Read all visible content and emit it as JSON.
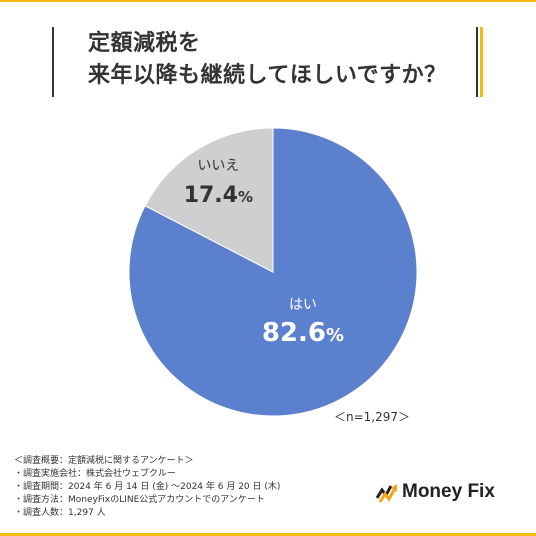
{
  "colors": {
    "accent": "#F5B914",
    "text": "#333333"
  },
  "chart_data": {
    "type": "pie",
    "title_lines": [
      "定額減税を",
      "来年以降も継続してほしいですか？"
    ],
    "slices": [
      {
        "label": "はい",
        "value": 82.6,
        "unit": "%",
        "color": "#5B80CD"
      },
      {
        "label": "いいえ",
        "value": 17.4,
        "unit": "%",
        "color": "#CFCFCF"
      }
    ],
    "sample_size_label": "＜n=1,297＞"
  },
  "survey": {
    "heading": "＜調査概要：定額減税に関するアンケート＞",
    "lines": [
      "・調査実施会社：株式会社ウェブクルー",
      "・調査期間：2024 年 6 月 14 日 (金) 〜2024 年 6 月 20 日 (木)",
      "・調査方法：MoneyFixのLINE公式アカウントでのアンケート",
      "・調査人数：1,297 人"
    ]
  },
  "logo": {
    "text": "Money Fix",
    "icon": "money-fix-logo-icon"
  }
}
